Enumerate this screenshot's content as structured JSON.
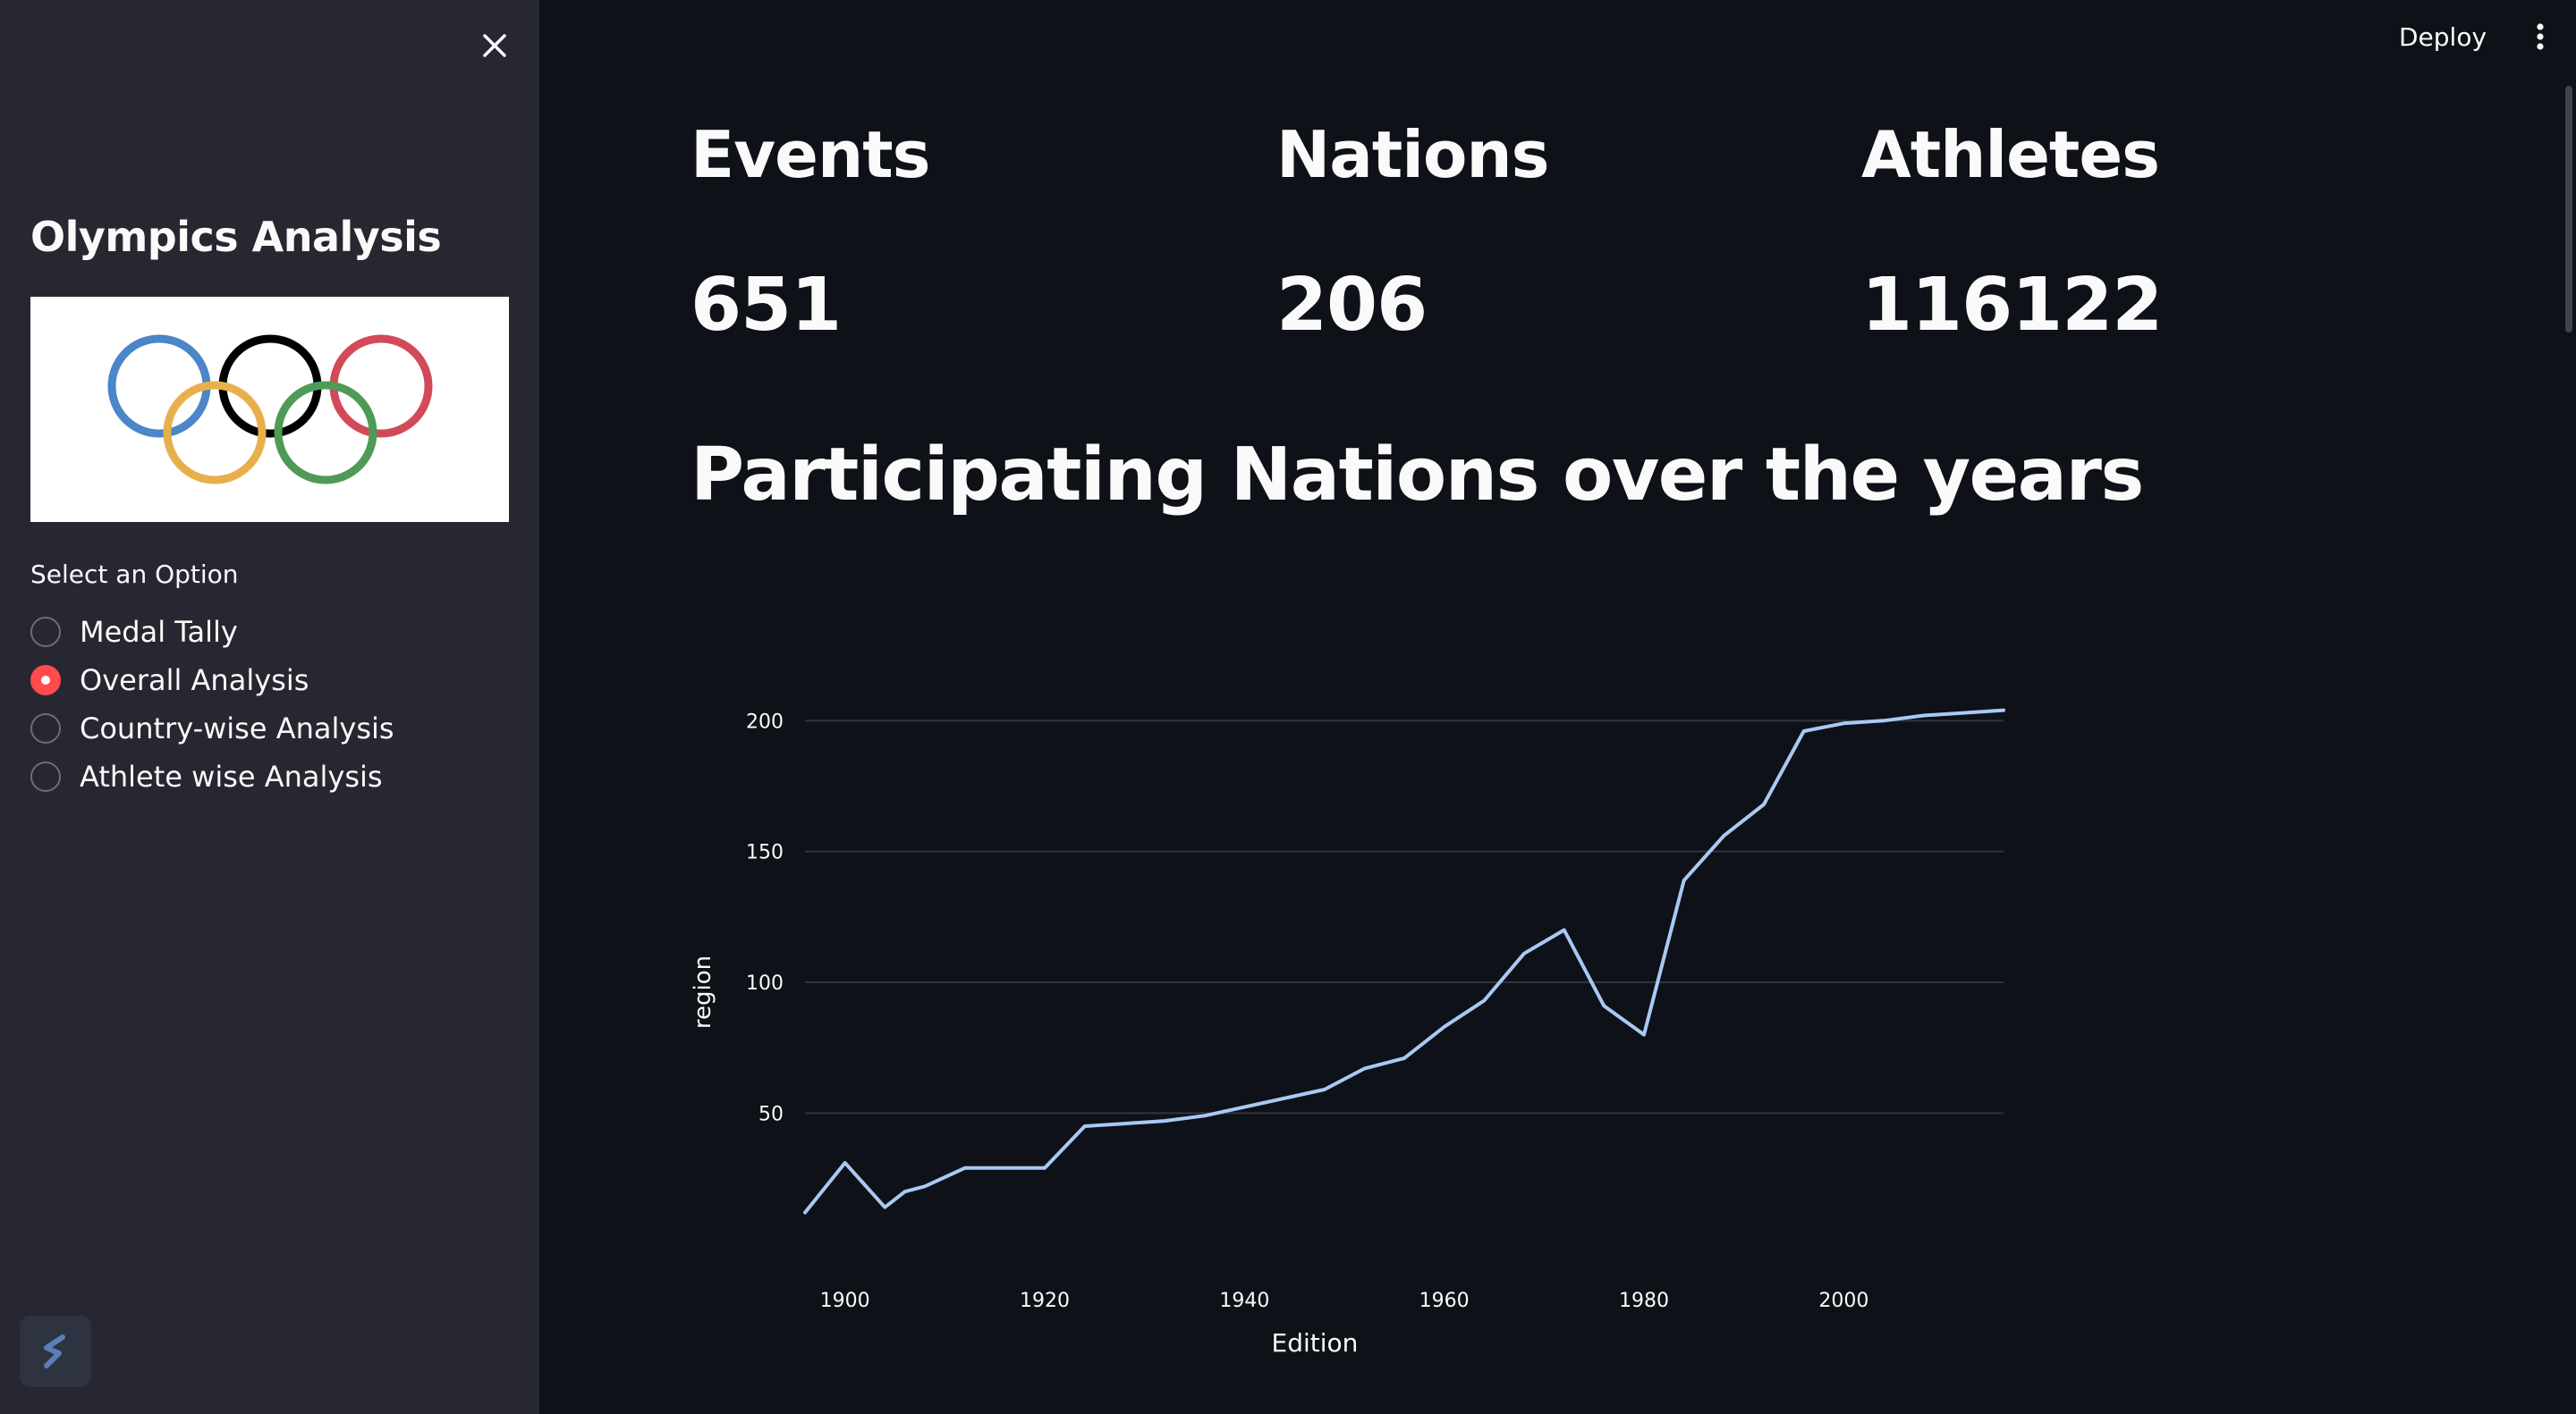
{
  "sidebar": {
    "title": "Olympics Analysis",
    "select_label": "Select an Option",
    "options": [
      "Medal Tally",
      "Overall Analysis",
      "Country-wise Analysis",
      "Athlete wise Analysis"
    ],
    "selected_index": 1
  },
  "header": {
    "deploy_label": "Deploy"
  },
  "metrics": [
    {
      "label": "Events",
      "value": "651"
    },
    {
      "label": "Nations",
      "value": "206"
    },
    {
      "label": "Athletes",
      "value": "116122"
    }
  ],
  "heading": "Participating Nations over the years",
  "colors": {
    "background": "#0e1117",
    "sidebar": "#262730",
    "accent": "#ff4b4b",
    "line": "#a9c9f5",
    "ring_blue": "#4a86c8",
    "ring_black": "#000000",
    "ring_red": "#d24a5a",
    "ring_yellow": "#e8b04c",
    "ring_green": "#4f9a57"
  },
  "chart_data": {
    "type": "line",
    "title": "",
    "xlabel": "Edition",
    "ylabel": "region",
    "x": [
      1896,
      1900,
      1904,
      1906,
      1908,
      1912,
      1920,
      1924,
      1928,
      1932,
      1936,
      1948,
      1952,
      1956,
      1960,
      1964,
      1968,
      1972,
      1976,
      1980,
      1984,
      1988,
      1992,
      1996,
      2000,
      2004,
      2008,
      2012,
      2016
    ],
    "y": [
      12,
      31,
      14,
      20,
      22,
      29,
      29,
      45,
      46,
      47,
      49,
      59,
      67,
      71,
      83,
      93,
      111,
      120,
      91,
      80,
      139,
      156,
      168,
      196,
      199,
      200,
      202,
      203,
      204
    ],
    "xticks": [
      1900,
      1920,
      1940,
      1960,
      1980,
      2000
    ],
    "yticks": [
      50,
      100,
      150,
      200
    ],
    "xlim": [
      1896,
      2016
    ],
    "ylim": [
      4,
      209
    ],
    "grid": true,
    "series": [
      {
        "values_from": "y"
      }
    ]
  }
}
